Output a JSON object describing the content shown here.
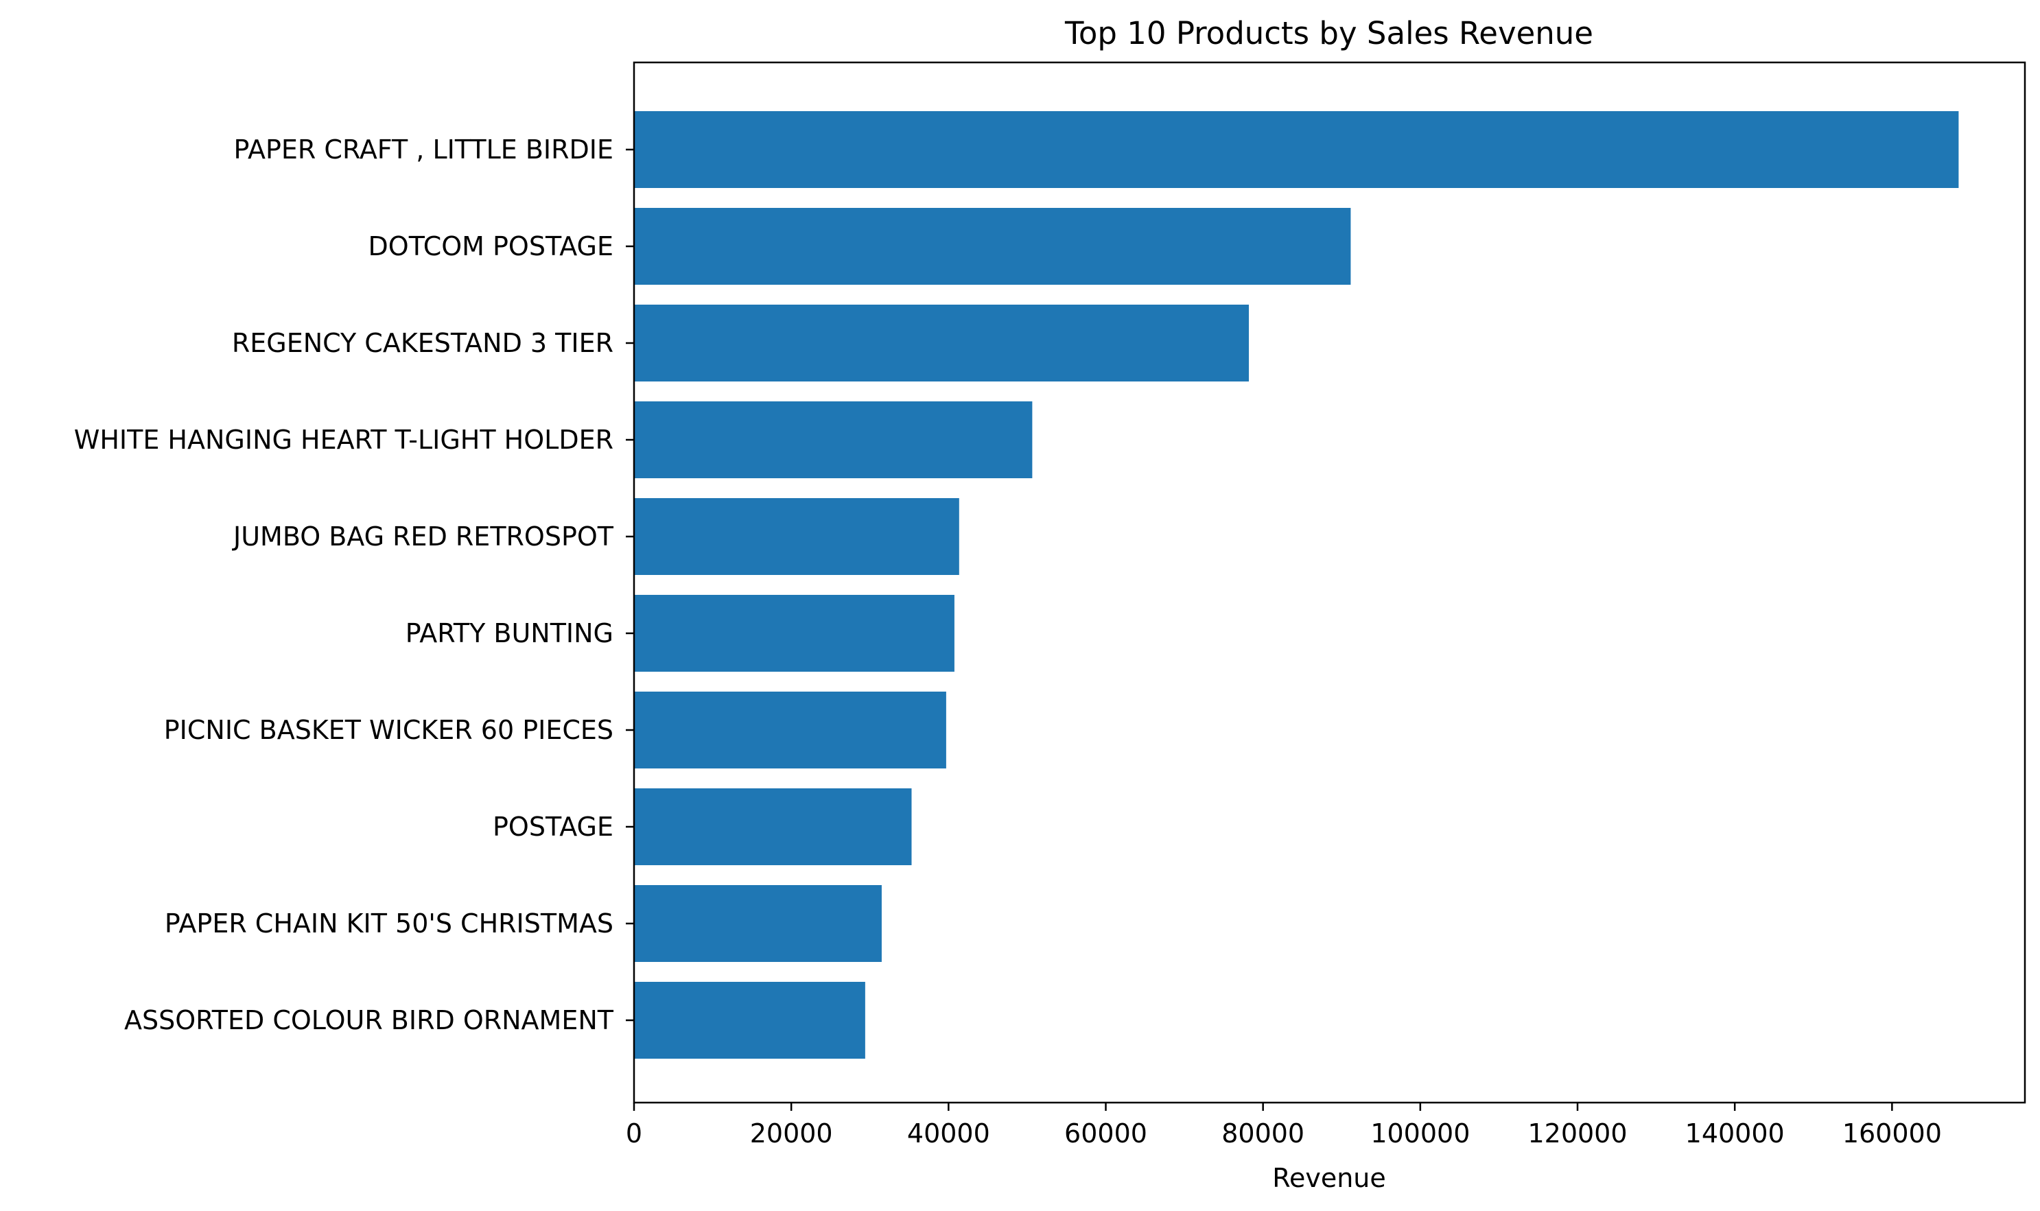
{
  "chart_data": {
    "type": "bar",
    "orientation": "horizontal",
    "title": "Top 10 Products by Sales Revenue",
    "xlabel": "Revenue",
    "ylabel": "",
    "categories": [
      "PAPER CRAFT , LITTLE BIRDIE",
      "DOTCOM POSTAGE",
      "REGENCY CAKESTAND 3 TIER",
      "WHITE HANGING HEART T-LIGHT HOLDER",
      "JUMBO BAG RED RETROSPOT",
      "PARTY BUNTING",
      "PICNIC BASKET WICKER 60 PIECES",
      "POSTAGE",
      "PAPER CHAIN KIT 50'S CHRISTMAS",
      "ASSORTED COLOUR BIRD ORNAMENT"
    ],
    "values": [
      168470,
      91150,
      78200,
      50650,
      41350,
      40750,
      39700,
      35300,
      31500,
      29400
    ],
    "xlim": [
      0,
      176900
    ],
    "xticks": [
      0,
      20000,
      40000,
      60000,
      80000,
      100000,
      120000,
      140000,
      160000
    ],
    "xtick_labels": [
      "0",
      "20000",
      "40000",
      "60000",
      "80000",
      "100000",
      "120000",
      "140000",
      "160000"
    ],
    "bar_color": "#1f77b4",
    "grid": false,
    "legend": "none"
  }
}
